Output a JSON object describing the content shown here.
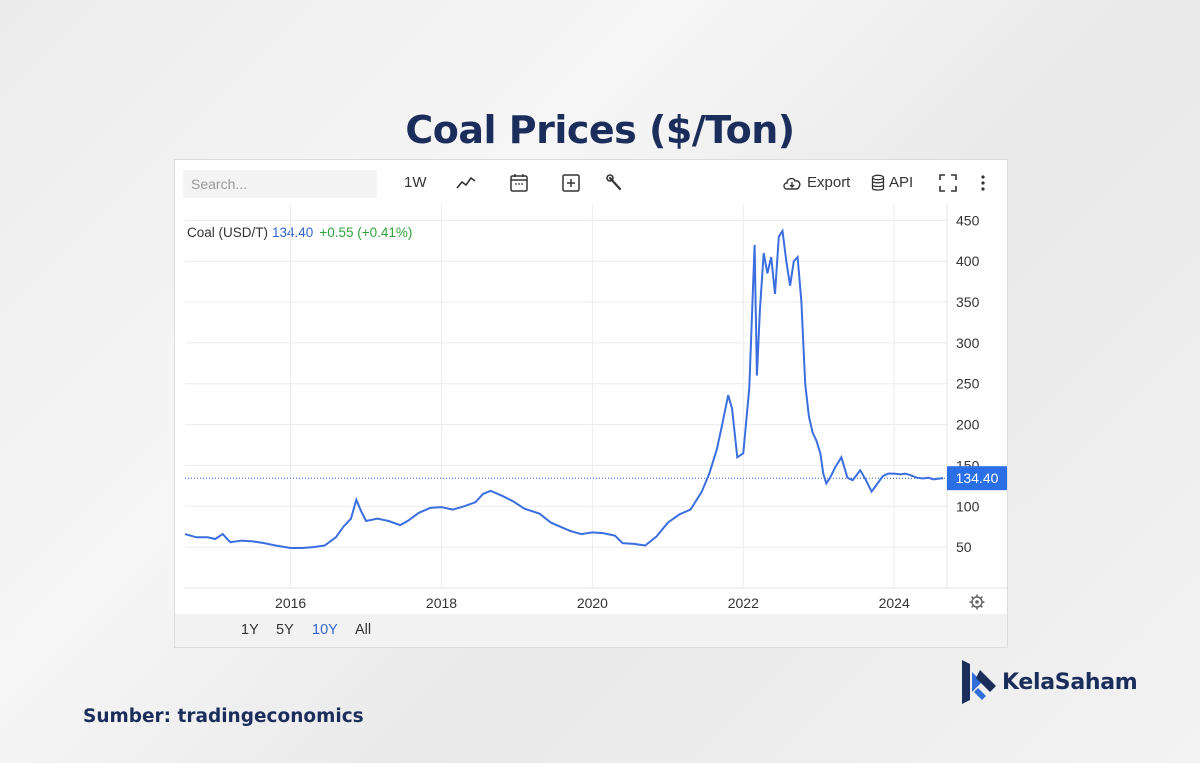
{
  "page": {
    "title": "Coal Prices ($/Ton)",
    "source": "Sumber: tradingeconomics",
    "brand": "KelaSaham"
  },
  "toolbar": {
    "search_placeholder": "Search...",
    "interval_label": "1W",
    "export_label": "Export",
    "api_label": "API",
    "icons": [
      "line-chart-icon",
      "calendar-icon",
      "plus-square-icon",
      "wrench-icon",
      "cloud-download-icon",
      "database-icon",
      "fullscreen-icon",
      "more-vertical-icon",
      "settings-icon"
    ]
  },
  "legend": {
    "symbol": "Coal (USD/T)",
    "price": "134.40",
    "change": "+0.55 (+0.41%)"
  },
  "range_buttons": [
    {
      "label": "1Y",
      "active": false
    },
    {
      "label": "5Y",
      "active": false
    },
    {
      "label": "10Y",
      "active": true
    },
    {
      "label": "All",
      "active": false
    }
  ],
  "colors": {
    "line": "#3b6fe0",
    "accent_blue": "#3366cc",
    "change_green": "#2ea33a",
    "title_navy": "#1b2d5a"
  },
  "chart_data": {
    "type": "line",
    "title": "Coal Prices ($/Ton)",
    "xlabel": "",
    "ylabel": "",
    "x_ticks": [
      2016,
      2018,
      2020,
      2022,
      2024
    ],
    "y_ticks": [
      50,
      100,
      150,
      200,
      250,
      300,
      350,
      400,
      450
    ],
    "xlim": [
      2014.6,
      2024.7
    ],
    "ylim": [
      0,
      470
    ],
    "last_value_label": "134.40",
    "grid": true,
    "series": [
      {
        "name": "Coal (USD/T)",
        "x": [
          2014.6,
          2014.75,
          2014.9,
          2015.0,
          2015.1,
          2015.2,
          2015.35,
          2015.5,
          2015.65,
          2015.8,
          2016.0,
          2016.15,
          2016.3,
          2016.45,
          2016.6,
          2016.7,
          2016.8,
          2016.87,
          2016.93,
          2017.0,
          2017.15,
          2017.3,
          2017.45,
          2017.55,
          2017.7,
          2017.85,
          2018.0,
          2018.15,
          2018.3,
          2018.45,
          2018.55,
          2018.65,
          2018.8,
          2018.95,
          2019.1,
          2019.3,
          2019.45,
          2019.55,
          2019.7,
          2019.85,
          2020.0,
          2020.15,
          2020.3,
          2020.4,
          2020.55,
          2020.7,
          2020.85,
          2021.0,
          2021.15,
          2021.3,
          2021.45,
          2021.55,
          2021.65,
          2021.72,
          2021.8,
          2021.85,
          2021.92,
          2022.0,
          2022.08,
          2022.15,
          2022.18,
          2022.22,
          2022.27,
          2022.32,
          2022.37,
          2022.42,
          2022.47,
          2022.52,
          2022.57,
          2022.62,
          2022.67,
          2022.72,
          2022.77,
          2022.82,
          2022.87,
          2022.92,
          2022.97,
          2023.02,
          2023.06,
          2023.1,
          2023.15,
          2023.22,
          2023.3,
          2023.38,
          2023.45,
          2023.55,
          2023.62,
          2023.7,
          2023.78,
          2023.85,
          2023.92,
          2024.0,
          2024.08,
          2024.15,
          2024.22,
          2024.3,
          2024.38,
          2024.45,
          2024.52,
          2024.6,
          2024.65
        ],
        "y": [
          66,
          62,
          62,
          60,
          66,
          56,
          58,
          57,
          55,
          52,
          49,
          49,
          50,
          52,
          62,
          75,
          85,
          108,
          95,
          82,
          85,
          82,
          77,
          82,
          92,
          98,
          99,
          96,
          100,
          105,
          115,
          119,
          113,
          106,
          97,
          91,
          80,
          76,
          70,
          66,
          68,
          67,
          64,
          55,
          54,
          52,
          63,
          80,
          90,
          96,
          118,
          140,
          170,
          200,
          236,
          220,
          160,
          165,
          245,
          420,
          260,
          340,
          410,
          385,
          405,
          360,
          430,
          437,
          400,
          370,
          400,
          405,
          350,
          250,
          210,
          190,
          180,
          165,
          140,
          128,
          135,
          148,
          160,
          135,
          132,
          144,
          133,
          118,
          128,
          137,
          140,
          140,
          139,
          140,
          138,
          135,
          134,
          135,
          133,
          134,
          134.4
        ]
      }
    ]
  }
}
